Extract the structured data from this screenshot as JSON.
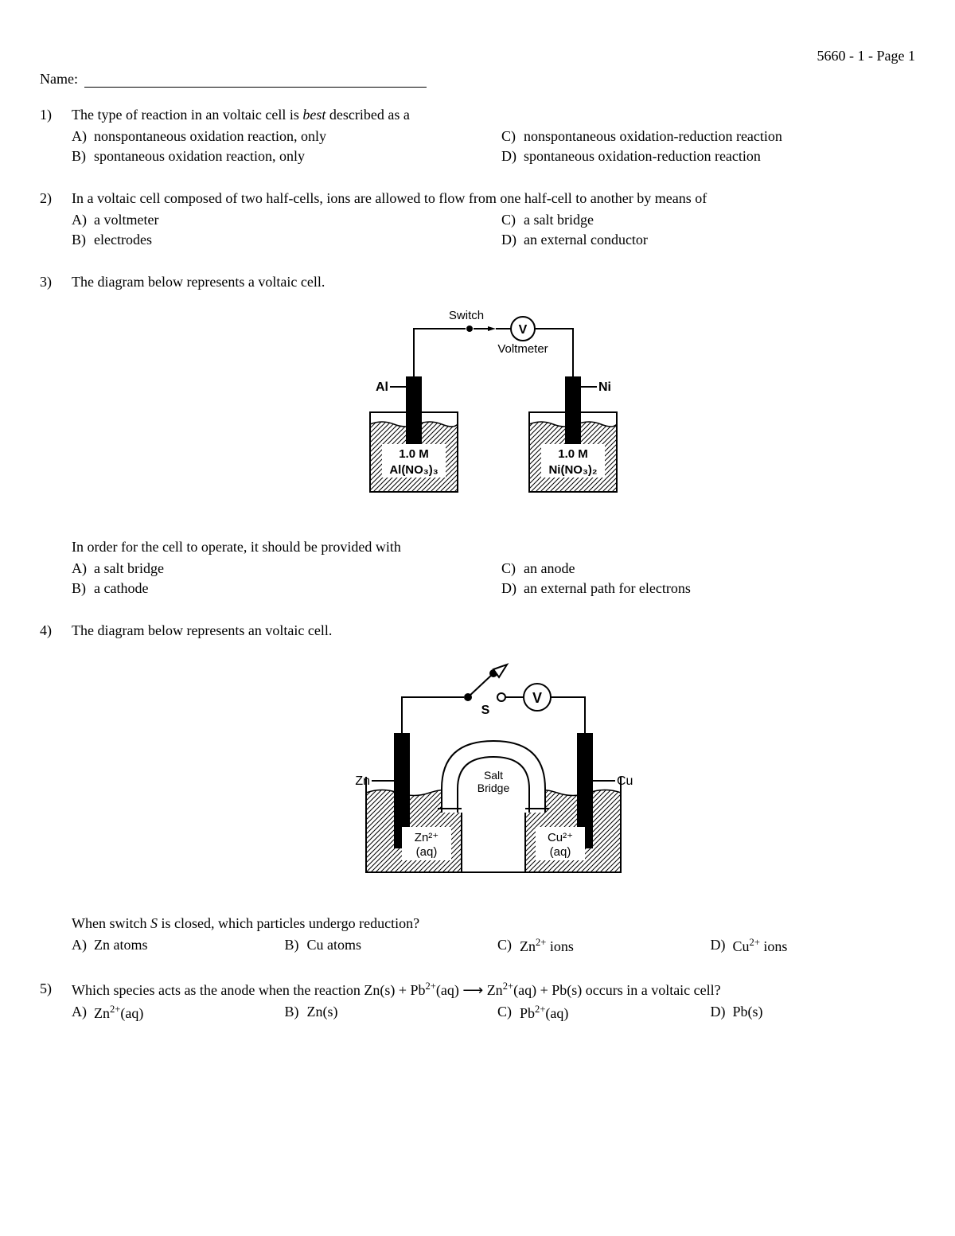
{
  "header": {
    "pageid": "5660 - 1 - Page 1"
  },
  "name_label": "Name:",
  "q1": {
    "num": "1)",
    "stem_a": "The type of reaction in an voltaic cell is ",
    "stem_em": "best",
    "stem_b": " described as a",
    "A": "nonspontaneous oxidation reaction, only",
    "B": "spontaneous oxidation reaction, only",
    "C": "nonspontaneous oxidation-reduction reaction",
    "D": "spontaneous oxidation-reduction reaction"
  },
  "q2": {
    "num": "2)",
    "stem": "In a voltaic cell composed of two half-cells, ions are allowed to flow from one half-cell to another by means of",
    "A": "a voltmeter",
    "B": "electrodes",
    "C": "a salt bridge",
    "D": "an external conductor"
  },
  "q3": {
    "num": "3)",
    "stem": "The diagram below represents a voltaic cell.",
    "prompt": "In order for the cell to operate, it should be provided with",
    "A": "a salt bridge",
    "B": "a cathode",
    "C": "an anode",
    "D": "an external path for electrons",
    "diagram": {
      "switch_label": "Switch",
      "voltmeter_text": "V",
      "voltmeter_label": "Voltmeter",
      "left_electrode": "Al",
      "right_electrode": "Ni",
      "left_solution_molarity": "1.0 M",
      "left_solution_formula": "Al(NO₃)₃",
      "right_solution_molarity": "1.0 M",
      "right_solution_formula": "Ni(NO₃)₂"
    }
  },
  "q4": {
    "num": "4)",
    "stem": "The diagram below represents an voltaic cell.",
    "prompt_a": "When switch ",
    "prompt_em": "S",
    "prompt_b": " is closed, which particles undergo reduction?",
    "A": "Zn atoms",
    "B": "Cu atoms",
    "C_html": "Zn<sup>2+</sup> ions",
    "D_html": "Cu<sup>2+</sup> ions",
    "diagram": {
      "switch_label": "S",
      "voltmeter_text": "V",
      "salt_bridge_l1": "Salt",
      "salt_bridge_l2": "Bridge",
      "left_electrode": "Zn",
      "right_electrode": "Cu",
      "left_solution_l1": "Zn²⁺",
      "left_solution_l2": "(aq)",
      "right_solution_l1": "Cu²⁺",
      "right_solution_l2": "(aq)"
    }
  },
  "q5": {
    "num": "5)",
    "stem_html": "Which species acts as the anode when the reaction Zn(s) + Pb<sup>2+</sup>(aq) ⟶ Zn<sup>2+</sup>(aq) + Pb(s) occurs in a voltaic cell?",
    "A_html": "Zn<sup>2+</sup>(aq)",
    "B": "Zn(s)",
    "C_html": "Pb<sup>2+</sup>(aq)",
    "D": "Pb(s)"
  },
  "letters": {
    "A": "A)",
    "B": "B)",
    "C": "C)",
    "D": "D)"
  }
}
